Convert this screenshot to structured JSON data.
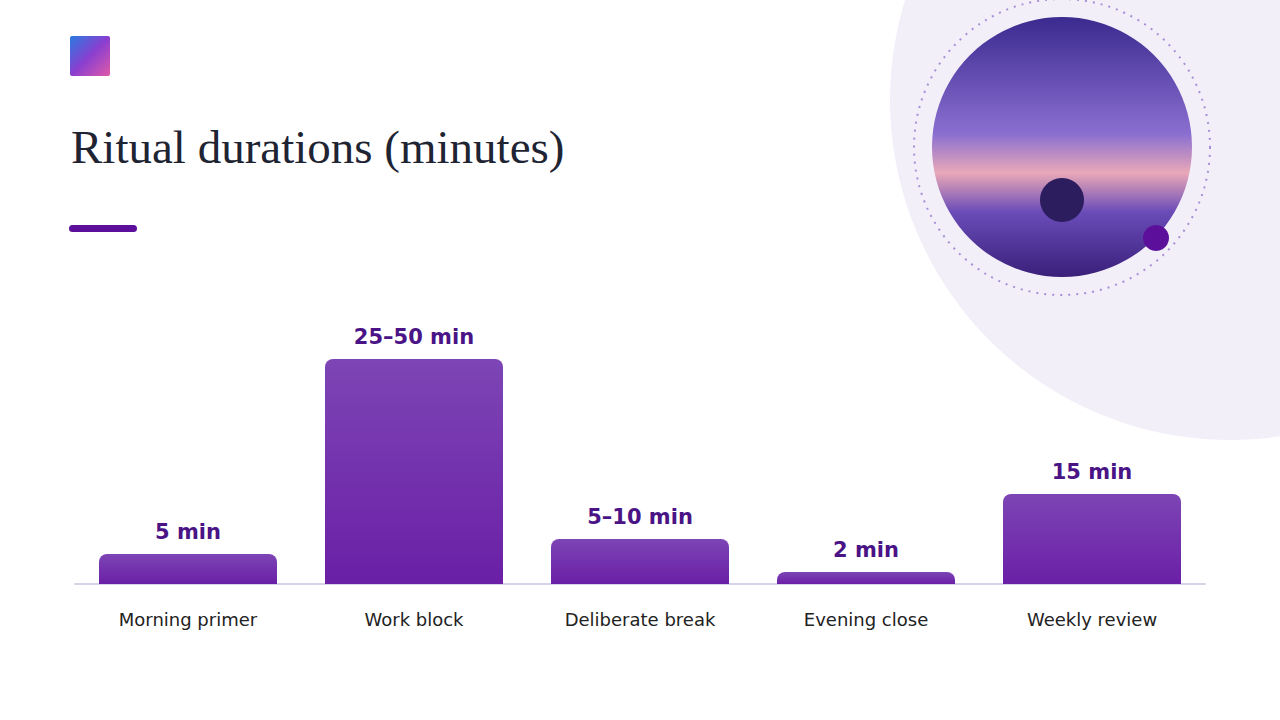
{
  "chart_data": {
    "type": "bar",
    "title": "Ritual durations (minutes)",
    "categories": [
      "Morning primer",
      "Work block",
      "Deliberate break",
      "Evening close",
      "Weekly review"
    ],
    "values": [
      5,
      37.5,
      7.5,
      2,
      15
    ],
    "value_labels": [
      "5 min",
      "25–50 min",
      "5–10 min",
      "2 min",
      "15 min"
    ],
    "color": "#6a1fa6",
    "ylim": [
      0,
      40
    ],
    "grid": false,
    "data_labels": true,
    "tick_labels": "x"
  }
}
